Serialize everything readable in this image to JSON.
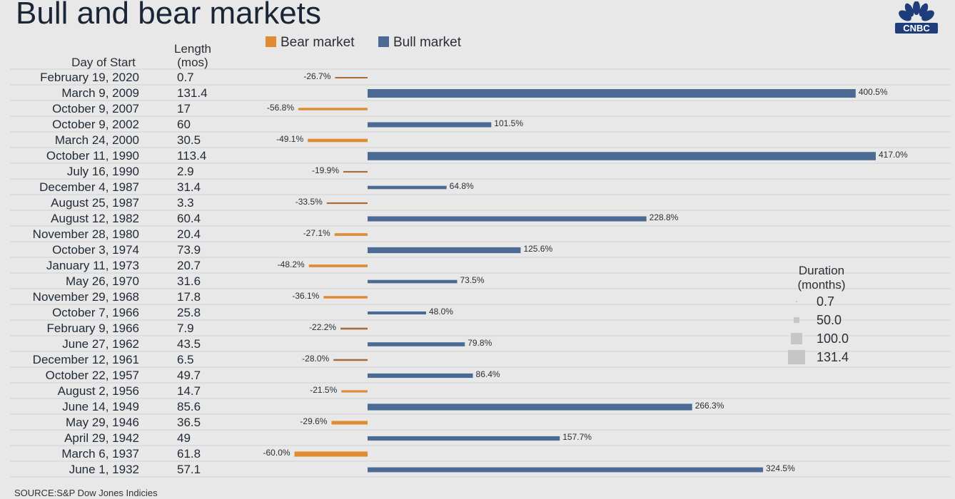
{
  "header": {
    "title": "Bull and bear markets"
  },
  "logo": {
    "text": "CNBC",
    "icon": "nbc-peacock-icon"
  },
  "legend": {
    "items": [
      {
        "label": "Bear market",
        "color": "#e08a32"
      },
      {
        "label": "Bull market",
        "color": "#4b6b94"
      }
    ]
  },
  "columns": {
    "day_of_start": "Day of Start",
    "length": "Length (mos)"
  },
  "colors": {
    "bear": "#e08a32",
    "bull": "#4b6b94",
    "bear_line": "#a86b3a",
    "bull_line": "#4b6b94"
  },
  "chart_data": {
    "type": "bar",
    "value_unit": "%",
    "rows": [
      {
        "date": "February 19, 2020",
        "length": "0.7",
        "type": "bear",
        "label": "-26.7%",
        "value": -26.7,
        "months": 0.7
      },
      {
        "date": "March 9, 2009",
        "length": "131.4",
        "type": "bull",
        "label": "400.5%",
        "value": 400.5,
        "months": 131.4
      },
      {
        "date": "October 9, 2007",
        "length": "17",
        "type": "bear",
        "label": "-56.8%",
        "value": -56.8,
        "months": 17
      },
      {
        "date": "October 9, 2002",
        "length": "60",
        "type": "bull",
        "label": "101.5%",
        "value": 101.5,
        "months": 60
      },
      {
        "date": "March 24, 2000",
        "length": "30.5",
        "type": "bear",
        "label": "-49.1%",
        "value": -49.1,
        "months": 30.5
      },
      {
        "date": "October 11, 1990",
        "length": "113.4",
        "type": "bull",
        "label": "417.0%",
        "value": 417.0,
        "months": 113.4
      },
      {
        "date": "July 16, 1990",
        "length": "2.9",
        "type": "bear",
        "label": "-19.9%",
        "value": -19.9,
        "months": 2.9
      },
      {
        "date": "December 4, 1987",
        "length": "31.4",
        "type": "bull",
        "label": "64.8%",
        "value": 64.8,
        "months": 31.4
      },
      {
        "date": "August 25, 1987",
        "length": "3.3",
        "type": "bear",
        "label": "-33.5%",
        "value": -33.5,
        "months": 3.3
      },
      {
        "date": "August 12, 1982",
        "length": "60.4",
        "type": "bull",
        "label": "228.8%",
        "value": 228.8,
        "months": 60.4
      },
      {
        "date": "November 28, 1980",
        "length": "20.4",
        "type": "bear",
        "label": "-27.1%",
        "value": -27.1,
        "months": 20.4
      },
      {
        "date": "October 3, 1974",
        "length": "73.9",
        "type": "bull",
        "label": "125.6%",
        "value": 125.6,
        "months": 73.9
      },
      {
        "date": "January 11, 1973",
        "length": "20.7",
        "type": "bear",
        "label": "-48.2%",
        "value": -48.2,
        "months": 20.7
      },
      {
        "date": "May 26, 1970",
        "length": "31.6",
        "type": "bull",
        "label": "73.5%",
        "value": 73.5,
        "months": 31.6
      },
      {
        "date": "November 29, 1968",
        "length": "17.8",
        "type": "bear",
        "label": "-36.1%",
        "value": -36.1,
        "months": 17.8
      },
      {
        "date": "October 7, 1966",
        "length": "25.8",
        "type": "bull",
        "label": "48.0%",
        "value": 48.0,
        "months": 25.8
      },
      {
        "date": "February 9, 1966",
        "length": "7.9",
        "type": "bear",
        "label": "-22.2%",
        "value": -22.2,
        "months": 7.9
      },
      {
        "date": "June 27, 1962",
        "length": "43.5",
        "type": "bull",
        "label": "79.8%",
        "value": 79.8,
        "months": 43.5
      },
      {
        "date": "December 12, 1961",
        "length": "6.5",
        "type": "bear",
        "label": "-28.0%",
        "value": -28.0,
        "months": 6.5
      },
      {
        "date": "October 22, 1957",
        "length": "49.7",
        "type": "bull",
        "label": "86.4%",
        "value": 86.4,
        "months": 49.7
      },
      {
        "date": "August 2, 1956",
        "length": "14.7",
        "type": "bear",
        "label": "-21.5%",
        "value": -21.5,
        "months": 14.7
      },
      {
        "date": "June 14, 1949",
        "length": "85.6",
        "type": "bull",
        "label": "266.3%",
        "value": 266.3,
        "months": 85.6
      },
      {
        "date": "May 29, 1946",
        "length": "36.5",
        "type": "bear",
        "label": "-29.6%",
        "value": -29.6,
        "months": 36.5
      },
      {
        "date": "April 29, 1942",
        "length": "49",
        "type": "bull",
        "label": "157.7%",
        "value": 157.7,
        "months": 49
      },
      {
        "date": "March 6, 1937",
        "length": "61.8",
        "type": "bear",
        "label": "-60.0%",
        "value": -60.0,
        "months": 61.8
      },
      {
        "date": "June 1, 1932",
        "length": "57.1",
        "type": "bull",
        "label": "324.5%",
        "value": 324.5,
        "months": 57.1
      }
    ]
  },
  "duration_legend": {
    "title": "Duration (months)",
    "items": [
      {
        "label": "0.7",
        "months": 0.7
      },
      {
        "label": "50.0",
        "months": 50.0
      },
      {
        "label": "100.0",
        "months": 100.0
      },
      {
        "label": "131.4",
        "months": 131.4
      }
    ]
  },
  "footer": {
    "source": "SOURCE:S&P Dow Jones Indicies"
  }
}
